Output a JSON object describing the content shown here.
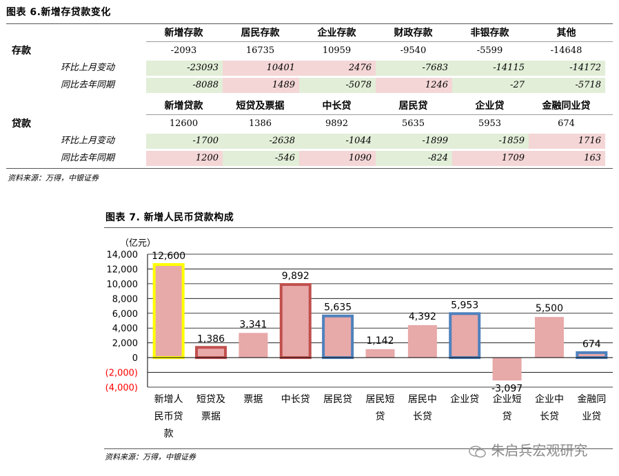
{
  "table": {
    "title": "图表 6.新增存贷款变化",
    "deposits": {
      "row_label": "存款",
      "headers": [
        "新增存款",
        "居民存款",
        "企业存款",
        "财政存款",
        "非银存款",
        "其他"
      ],
      "values": [
        "-2093",
        "16735",
        "10959",
        "-9540",
        "-5599",
        "-14648"
      ],
      "mom_label": "环比上月变动",
      "mom": [
        "-23093",
        "10401",
        "2476",
        "-7683",
        "-14115",
        "-14172"
      ],
      "mom_colors": [
        "green",
        "pink",
        "pink",
        "green",
        "green",
        "green"
      ],
      "yoy_label": "同比去年同期",
      "yoy": [
        "-8088",
        "1489",
        "-5078",
        "1246",
        "-27",
        "-5718"
      ],
      "yoy_colors": [
        "green",
        "pink",
        "green",
        "pink",
        "green",
        "green"
      ]
    },
    "loans": {
      "row_label": "贷款",
      "headers": [
        "新增贷款",
        "短贷及票据",
        "中长贷",
        "居民贷",
        "企业贷",
        "金融同业贷"
      ],
      "values": [
        "12600",
        "1386",
        "9892",
        "5635",
        "5953",
        "674"
      ],
      "mom_label": "环比上月变动",
      "mom": [
        "-1700",
        "-2638",
        "-1044",
        "-1899",
        "-1859",
        "1716"
      ],
      "mom_colors": [
        "green",
        "green",
        "green",
        "green",
        "green",
        "pink"
      ],
      "yoy_label": "同比去年同期",
      "yoy": [
        "1200",
        "-546",
        "1090",
        "-824",
        "1709",
        "163"
      ],
      "yoy_colors": [
        "pink",
        "green",
        "pink",
        "green",
        "pink",
        "pink"
      ]
    },
    "source": "资料来源：万得，中银证券"
  },
  "chart_title": "图表 7. 新增人民币贷款构成",
  "chart_data": {
    "type": "bar",
    "title": "",
    "unit_label": "（亿元）",
    "categories": [
      "新增人民币贷款",
      "短贷及票据",
      "票据",
      "中长贷",
      "居民贷",
      "居民短贷",
      "居民中长贷",
      "企业贷",
      "企业短贷",
      "企业中长贷",
      "金融同业贷"
    ],
    "category_lines": [
      [
        "新增人",
        "民币贷",
        "款"
      ],
      [
        "短贷及",
        "票据"
      ],
      [
        "票据"
      ],
      [
        "中长贷"
      ],
      [
        "居民贷"
      ],
      [
        "居民短",
        "贷"
      ],
      [
        "居民中",
        "长贷"
      ],
      [
        "企业贷"
      ],
      [
        "企业短",
        "贷"
      ],
      [
        "企业中",
        "长贷"
      ],
      [
        "金融同",
        "业贷"
      ]
    ],
    "values": [
      12600,
      1386,
      3341,
      9892,
      5635,
      1142,
      4392,
      5953,
      -3097,
      5500,
      674
    ],
    "value_labels": [
      "12,600",
      "1,386",
      "3,341",
      "9,892",
      "5,635",
      "1,142",
      "4,392",
      "5,953",
      "-3,097",
      "5,500",
      "674"
    ],
    "outlines": [
      "#ffff00",
      "#c0504d",
      "none",
      "#c0504d",
      "#4f81bd",
      "none",
      "none",
      "#4f81bd",
      "none",
      "none",
      "#4f81bd"
    ],
    "bar_color": "#e8a9a9",
    "ylim": [
      -4000,
      14000
    ],
    "yticks": [
      -4000,
      -2000,
      0,
      2000,
      4000,
      6000,
      8000,
      10000,
      12000,
      14000
    ],
    "ytick_labels": [
      "(4,000)",
      "(2,000)",
      "0",
      "2,000",
      "4,000",
      "6,000",
      "8,000",
      "10,000",
      "12,000",
      "14,000"
    ],
    "negative_tick_color": "#ff0000",
    "grid": true
  },
  "chart_source": "资料来源：万得，中银证券",
  "watermark": "朱启兵宏观研究"
}
